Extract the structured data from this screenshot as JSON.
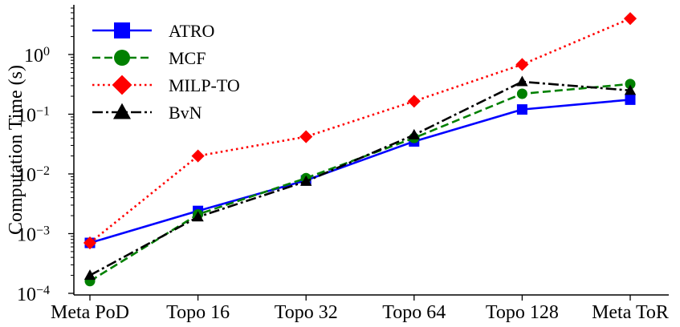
{
  "chart_data": {
    "type": "line",
    "title": "",
    "xlabel": "",
    "ylabel": "Computation Time (s)",
    "yscale": "log",
    "ylim": [
      0.0001,
      5
    ],
    "yticks": [
      {
        "value": 0.0001,
        "base": "10",
        "exp": "−4"
      },
      {
        "value": 0.001,
        "base": "10",
        "exp": "−3"
      },
      {
        "value": 0.01,
        "base": "10",
        "exp": "−2"
      },
      {
        "value": 0.1,
        "base": "10",
        "exp": "−1"
      },
      {
        "value": 1,
        "base": "10",
        "exp": "0"
      }
    ],
    "categories": [
      "Meta PoD",
      "Topo 16",
      "Topo 32",
      "Topo 64",
      "Topo 128",
      "Meta ToR"
    ],
    "grid": false,
    "legend_position": "top-left",
    "series": [
      {
        "name": "ATRO",
        "color": "#0000ff",
        "line_style": "solid",
        "marker": "square",
        "values": [
          0.0007,
          0.0024,
          0.0078,
          0.035,
          0.12,
          0.175
        ]
      },
      {
        "name": "MCF",
        "color": "#008000",
        "line_style": "dashed",
        "marker": "circle",
        "values": [
          0.00016,
          0.0021,
          0.0085,
          0.04,
          0.22,
          0.32
        ]
      },
      {
        "name": "MILP-TO",
        "color": "#ff0000",
        "line_style": "dotted",
        "marker": "diamond",
        "values": [
          0.0007,
          0.02,
          0.042,
          0.165,
          0.68,
          4.0
        ]
      },
      {
        "name": "BvN",
        "color": "#000000",
        "line_style": "dashdot",
        "marker": "triangle",
        "values": [
          0.0002,
          0.0019,
          0.0075,
          0.045,
          0.35,
          0.25
        ]
      }
    ]
  }
}
